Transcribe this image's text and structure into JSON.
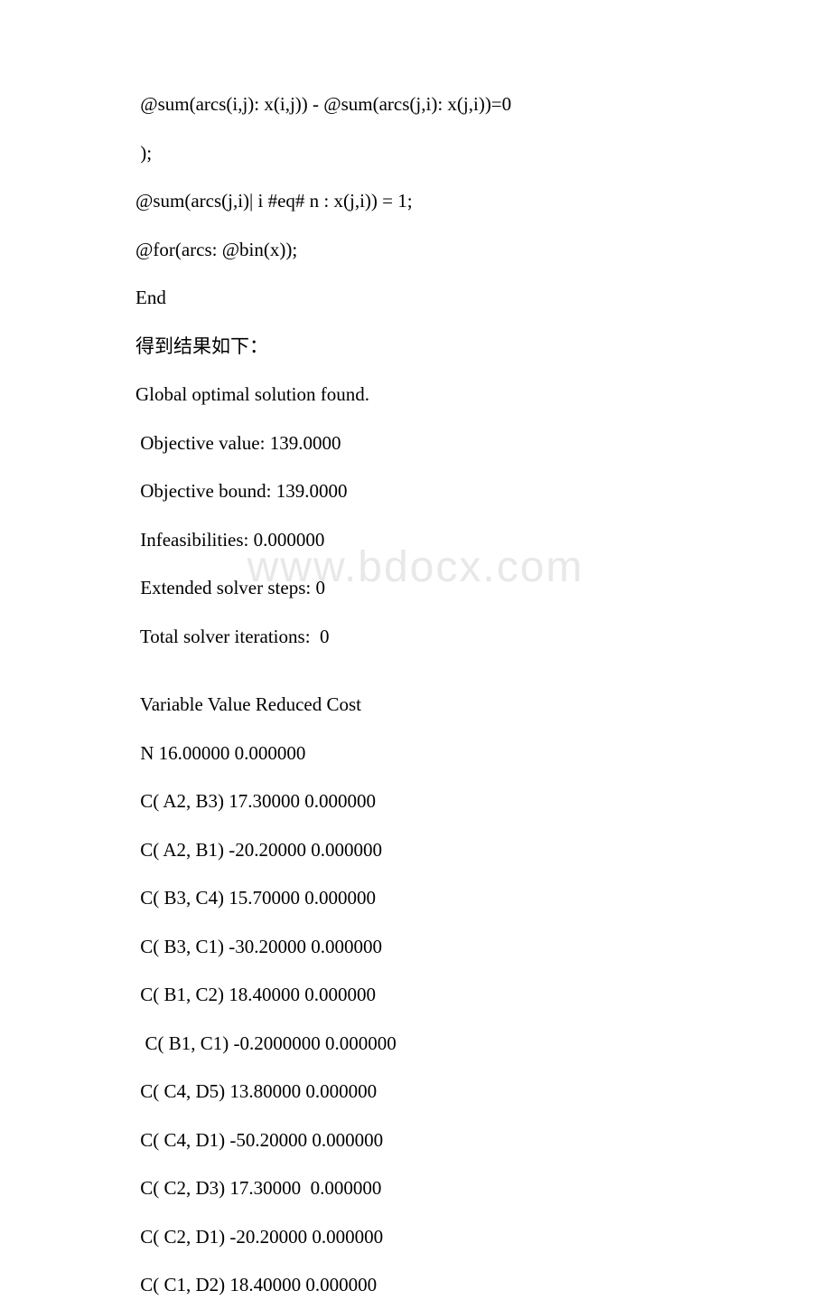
{
  "watermark": "www.bdocx.com",
  "lines": [
    " @sum(arcs(i,j): x(i,j)) - @sum(arcs(j,i): x(j,i))=0",
    " );",
    "@sum(arcs(j,i)| i #eq# n : x(j,i)) = 1;",
    "@for(arcs: @bin(x));",
    "End",
    "得到结果如下：",
    "Global optimal solution found.",
    " Objective value: 139.0000",
    " Objective bound: 139.0000",
    " Infeasibilities: 0.000000",
    " Extended solver steps: 0",
    " Total solver iterations:  0",
    "",
    " Variable Value Reduced Cost",
    " N 16.00000 0.000000",
    " C( A2, B3) 17.30000 0.000000",
    " C( A2, B1) -20.20000 0.000000",
    " C( B3, C4) 15.70000 0.000000",
    " C( B3, C1) -30.20000 0.000000",
    " C( B1, C2) 18.40000 0.000000",
    "  C( B1, C1) -0.2000000 0.000000",
    " C( C4, D5) 13.80000 0.000000",
    " C( C4, D1) -50.20000 0.000000",
    " C( C2, D3) 17.30000  0.000000",
    " C( C2, D1) -20.20000 0.000000",
    " C( C1, D2) 18.40000 0.000000"
  ],
  "text_color": "#000000",
  "background_color": "#ffffff",
  "watermark_color": "#e8e8e8",
  "font_size": 21,
  "line_spacing": 22
}
